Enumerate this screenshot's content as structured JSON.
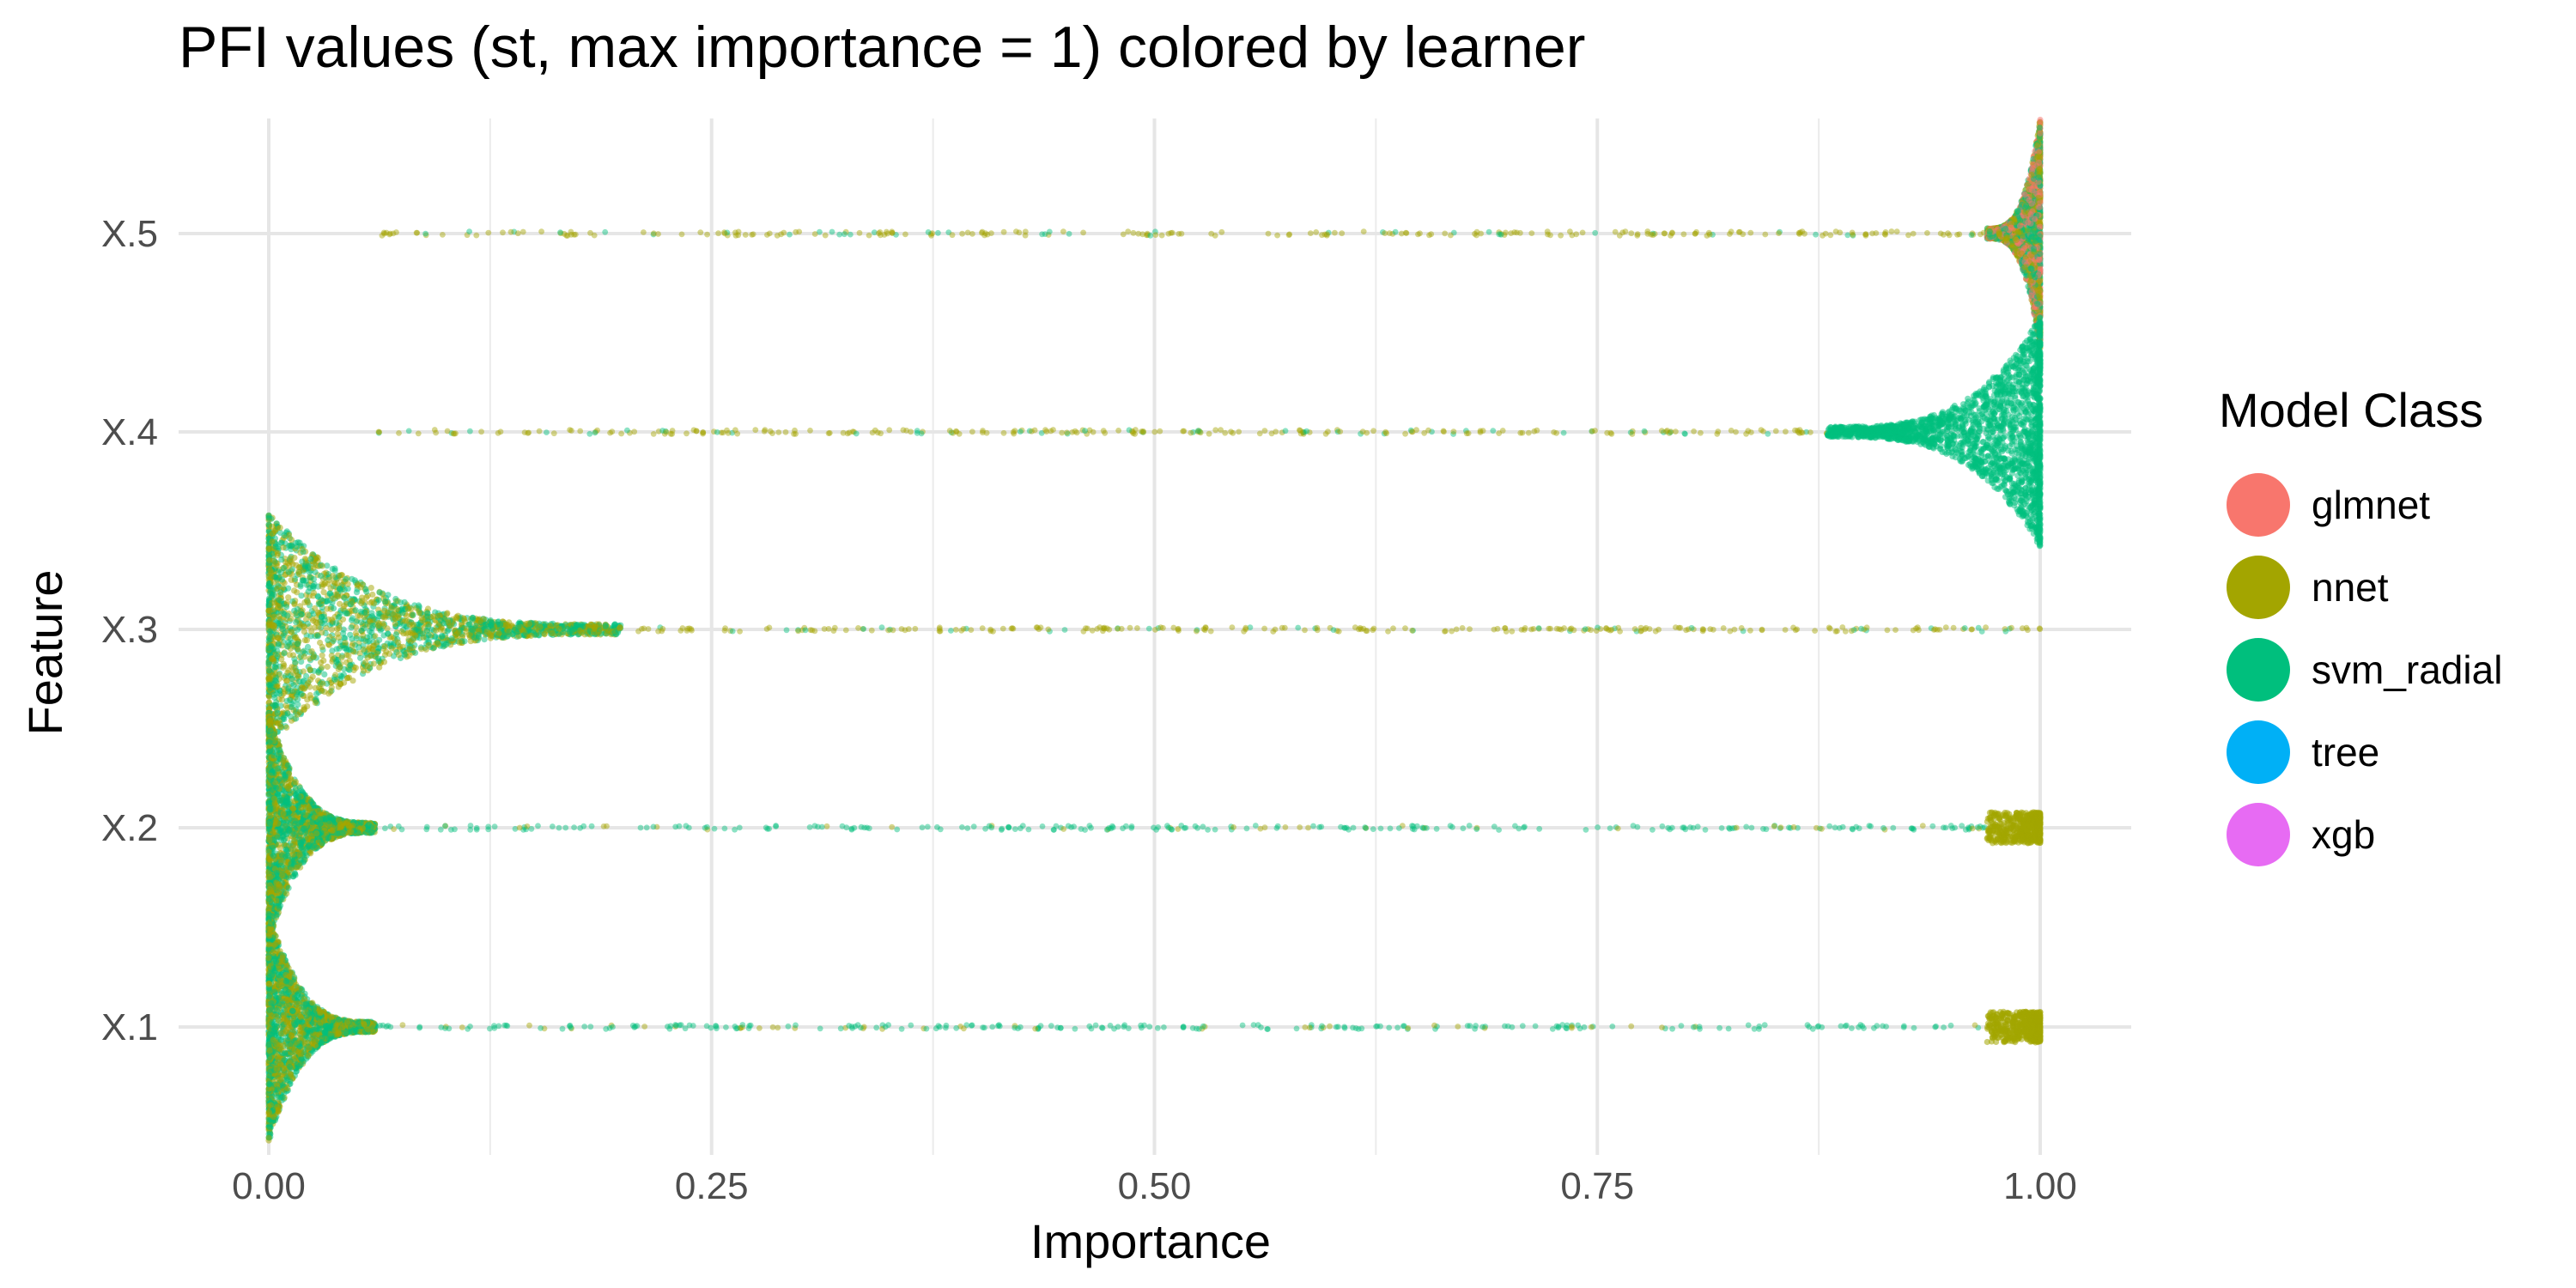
{
  "chart_data": {
    "type": "scatter",
    "subtype": "beeswarm",
    "title": "PFI values (st, max importance = 1) colored by learner",
    "xlabel": "Importance",
    "ylabel": "Feature",
    "xlim": [
      -0.0125,
      1.0125
    ],
    "x_ticks": [
      0,
      0.25,
      0.5,
      0.75,
      1
    ],
    "x_tick_labels": [
      "0.00",
      "0.25",
      "0.50",
      "0.75",
      "1.00"
    ],
    "categories": [
      "X.1",
      "X.2",
      "X.3",
      "X.4",
      "X.5"
    ],
    "grid": true,
    "legend": {
      "title": "Model Class",
      "position": "right",
      "items": [
        {
          "name": "glmnet",
          "color": "#F8766D"
        },
        {
          "name": "nnet",
          "color": "#A3A500"
        },
        {
          "name": "svm_radial",
          "color": "#00BF7D"
        },
        {
          "name": "tree",
          "color": "#00B0F6"
        },
        {
          "name": "xgb",
          "color": "#E76BF3"
        }
      ]
    },
    "series_summary": [
      {
        "feature": "X.5",
        "dense_region": [
          0.97,
          1.0
        ],
        "dominant_learners": [
          "svm_radial",
          "nnet",
          "glmnet"
        ],
        "sparse_range": [
          0.06,
          0.97
        ],
        "sparse_learner": "nnet"
      },
      {
        "feature": "X.4",
        "dense_region": [
          0.88,
          1.0
        ],
        "dominant_learners": [
          "svm_radial"
        ],
        "sparse_range": [
          0.06,
          0.88
        ],
        "sparse_learner": "nnet"
      },
      {
        "feature": "X.3",
        "dense_region": [
          0.0,
          0.2
        ],
        "dominant_learners": [
          "nnet",
          "svm_radial"
        ],
        "sparse_range": [
          0.2,
          1.0
        ],
        "sparse_learner": "nnet"
      },
      {
        "feature": "X.2",
        "dense_region": [
          0.0,
          0.06
        ],
        "dominant_learners": [
          "svm_radial",
          "nnet"
        ],
        "sparse_range": [
          0.06,
          0.97
        ],
        "sparse_learner": "svm_radial",
        "secondary_cluster": [
          0.97,
          1.0
        ],
        "secondary_learner": "nnet"
      },
      {
        "feature": "X.1",
        "dense_region": [
          0.0,
          0.06
        ],
        "dominant_learners": [
          "svm_radial",
          "nnet"
        ],
        "sparse_range": [
          0.06,
          0.97
        ],
        "sparse_learner": "svm_radial",
        "secondary_cluster": [
          0.97,
          1.0
        ],
        "secondary_learner": "nnet"
      }
    ]
  }
}
